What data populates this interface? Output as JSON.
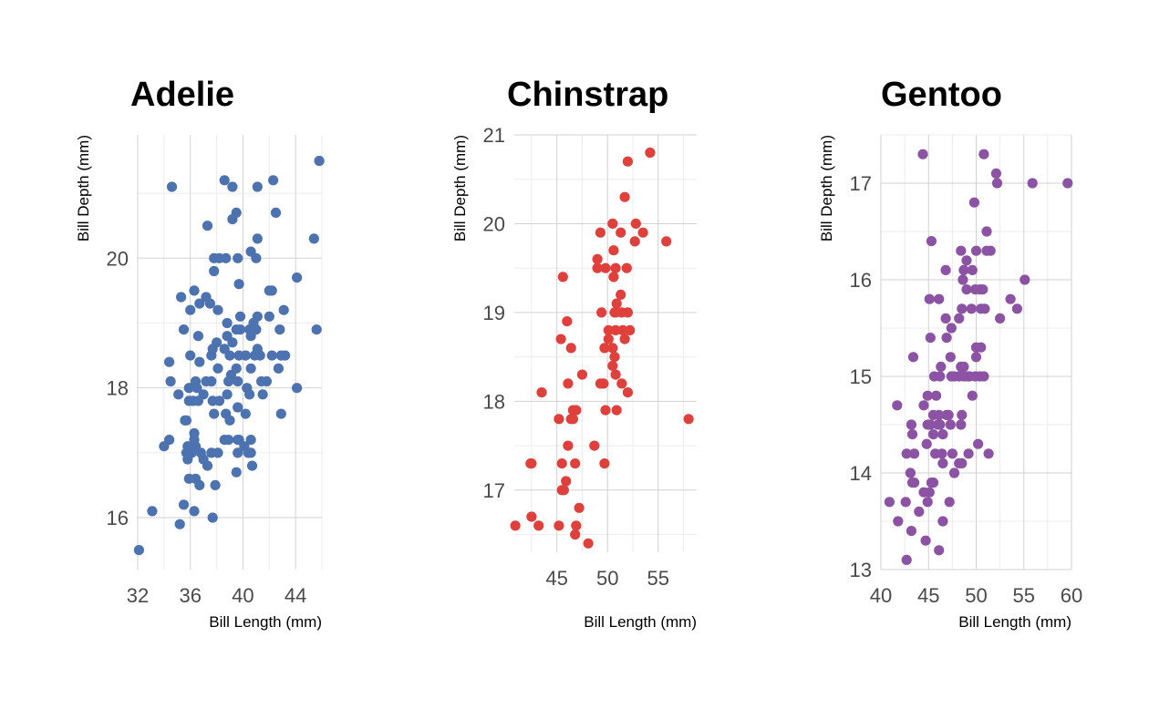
{
  "chart_data": [
    {
      "type": "scatter",
      "title": "Adelie",
      "xlabel": "Bill Length (mm)",
      "ylabel": "Bill Depth (mm)",
      "xlim": [
        32,
        46
      ],
      "ylim": [
        15.2,
        21.9
      ],
      "xticks": [
        32,
        36,
        40,
        44
      ],
      "yticks": [
        16,
        18,
        20
      ],
      "xminor": [
        34,
        38,
        42,
        46
      ],
      "yminor": [
        17,
        19,
        21
      ],
      "color": "#4c72b0",
      "grid": true,
      "points": [
        [
          34.6,
          21.1
        ],
        [
          38.6,
          21.2
        ],
        [
          39.2,
          21.1
        ],
        [
          41.1,
          21.1
        ],
        [
          42.3,
          21.2
        ],
        [
          45.8,
          21.5
        ],
        [
          39.2,
          20.6
        ],
        [
          39.5,
          20.7
        ],
        [
          42.5,
          20.7
        ],
        [
          37.3,
          20.5
        ],
        [
          40.6,
          20.1
        ],
        [
          41.1,
          20.3
        ],
        [
          45.4,
          20.3
        ],
        [
          37.8,
          20.0
        ],
        [
          38.2,
          20.0
        ],
        [
          38.7,
          20.0
        ],
        [
          41.0,
          20.0
        ],
        [
          39.6,
          20.0
        ],
        [
          37.8,
          19.8
        ],
        [
          39.7,
          19.6
        ],
        [
          44.1,
          19.7
        ],
        [
          35.3,
          19.4
        ],
        [
          36.3,
          19.5
        ],
        [
          37.2,
          19.4
        ],
        [
          37.5,
          19.3
        ],
        [
          42.0,
          19.5
        ],
        [
          42.2,
          19.5
        ],
        [
          36.7,
          19.3
        ],
        [
          38.1,
          19.2
        ],
        [
          36.0,
          19.2
        ],
        [
          38.8,
          19.0
        ],
        [
          39.8,
          19.1
        ],
        [
          41.1,
          19.1
        ],
        [
          42.0,
          19.1
        ],
        [
          43.1,
          19.2
        ],
        [
          45.6,
          18.9
        ],
        [
          40.8,
          19.0
        ],
        [
          41.0,
          18.9
        ],
        [
          40.5,
          18.9
        ],
        [
          39.8,
          18.9
        ],
        [
          39.5,
          18.9
        ],
        [
          35.5,
          18.9
        ],
        [
          42.8,
          18.9
        ],
        [
          38.8,
          18.8
        ],
        [
          39.2,
          18.7
        ],
        [
          36.6,
          18.8
        ],
        [
          38.0,
          18.7
        ],
        [
          37.7,
          18.6
        ],
        [
          40.6,
          18.8
        ],
        [
          41.1,
          18.6
        ],
        [
          38.6,
          18.6
        ],
        [
          39.0,
          18.5
        ],
        [
          39.7,
          18.5
        ],
        [
          40.2,
          18.5
        ],
        [
          40.9,
          18.5
        ],
        [
          41.3,
          18.5
        ],
        [
          42.2,
          18.5
        ],
        [
          42.9,
          18.5
        ],
        [
          43.2,
          18.5
        ],
        [
          36.0,
          18.5
        ],
        [
          37.6,
          18.5
        ],
        [
          39.1,
          18.2
        ],
        [
          39.5,
          18.3
        ],
        [
          40.6,
          18.3
        ],
        [
          36.7,
          18.4
        ],
        [
          34.4,
          18.4
        ],
        [
          42.7,
          18.3
        ],
        [
          36.4,
          18.1
        ],
        [
          37.2,
          18.1
        ],
        [
          37.6,
          18.1
        ],
        [
          38.9,
          18.1
        ],
        [
          39.6,
          18.1
        ],
        [
          41.4,
          18.1
        ],
        [
          41.8,
          18.1
        ],
        [
          38.1,
          18.3
        ],
        [
          34.5,
          18.1
        ],
        [
          35.1,
          17.9
        ],
        [
          35.9,
          18.0
        ],
        [
          36.2,
          17.8
        ],
        [
          35.9,
          17.8
        ],
        [
          36.5,
          18.0
        ],
        [
          36.6,
          17.8
        ],
        [
          37.0,
          17.9
        ],
        [
          37.7,
          17.8
        ],
        [
          38.2,
          17.8
        ],
        [
          38.8,
          17.9
        ],
        [
          39.6,
          17.7
        ],
        [
          40.3,
          18.0
        ],
        [
          40.5,
          17.9
        ],
        [
          41.5,
          17.9
        ],
        [
          44.1,
          18.0
        ],
        [
          39.0,
          17.5
        ],
        [
          37.8,
          17.6
        ],
        [
          38.7,
          17.6
        ],
        [
          40.2,
          17.6
        ],
        [
          42.9,
          17.6
        ],
        [
          35.7,
          17.5
        ],
        [
          35.6,
          17.5
        ],
        [
          39.6,
          17.2
        ],
        [
          36.3,
          17.3
        ],
        [
          36.3,
          17.2
        ],
        [
          38.6,
          17.2
        ],
        [
          38.9,
          17.2
        ],
        [
          39.7,
          17.2
        ],
        [
          40.6,
          17.2
        ],
        [
          34.4,
          17.2
        ],
        [
          34.0,
          17.1
        ],
        [
          35.8,
          17.1
        ],
        [
          36.2,
          17.1
        ],
        [
          36.4,
          17.1
        ],
        [
          40.1,
          17.1
        ],
        [
          36.0,
          17.0
        ],
        [
          37.6,
          17.0
        ],
        [
          36.8,
          17.0
        ],
        [
          38.1,
          17.0
        ],
        [
          39.6,
          17.0
        ],
        [
          40.4,
          17.0
        ],
        [
          40.6,
          17.0
        ],
        [
          35.7,
          17.0
        ],
        [
          36.1,
          17.0
        ],
        [
          35.8,
          16.9
        ],
        [
          37.0,
          16.9
        ],
        [
          37.3,
          16.8
        ],
        [
          40.7,
          16.8
        ],
        [
          39.5,
          16.7
        ],
        [
          35.9,
          16.6
        ],
        [
          36.4,
          16.6
        ],
        [
          36.7,
          16.5
        ],
        [
          37.9,
          16.5
        ],
        [
          35.5,
          16.2
        ],
        [
          36.3,
          16.1
        ],
        [
          33.1,
          16.1
        ],
        [
          37.7,
          16.0
        ],
        [
          35.2,
          15.9
        ],
        [
          32.1,
          15.5
        ]
      ]
    },
    {
      "type": "scatter",
      "title": "Chinstrap",
      "xlabel": "Bill Length (mm)",
      "ylabel": "Bill Depth (mm)",
      "xlim": [
        40.8,
        58.8
      ],
      "ylim": [
        16.3,
        21.0
      ],
      "xticks": [
        45,
        50,
        55
      ],
      "yticks": [
        17,
        18,
        19,
        20,
        21
      ],
      "xminor": [
        42.5,
        47.5,
        52.5,
        57.5
      ],
      "yminor": [
        16.5,
        17.5,
        18.5,
        19.5,
        20.5
      ],
      "color": "#e0403c",
      "grid": true,
      "points": [
        [
          54.2,
          20.8
        ],
        [
          52.0,
          20.7
        ],
        [
          51.7,
          20.3
        ],
        [
          50.5,
          20.0
        ],
        [
          52.8,
          20.0
        ],
        [
          49.3,
          19.9
        ],
        [
          51.3,
          19.9
        ],
        [
          53.5,
          19.9
        ],
        [
          52.7,
          19.8
        ],
        [
          55.8,
          19.8
        ],
        [
          50.6,
          19.7
        ],
        [
          49.0,
          19.6
        ],
        [
          50.8,
          19.5
        ],
        [
          49.0,
          19.5
        ],
        [
          49.8,
          19.5
        ],
        [
          51.9,
          19.5
        ],
        [
          45.6,
          19.4
        ],
        [
          50.6,
          19.4
        ],
        [
          51.3,
          19.2
        ],
        [
          50.9,
          19.1
        ],
        [
          50.7,
          19.0
        ],
        [
          50.8,
          19.0
        ],
        [
          51.4,
          19.0
        ],
        [
          52.0,
          19.0
        ],
        [
          49.4,
          19.0
        ],
        [
          46.0,
          18.9
        ],
        [
          51.5,
          18.8
        ],
        [
          52.2,
          18.8
        ],
        [
          50.1,
          18.7
        ],
        [
          51.7,
          18.7
        ],
        [
          45.4,
          18.7
        ],
        [
          46.4,
          18.6
        ],
        [
          50.5,
          18.6
        ],
        [
          50.1,
          18.8
        ],
        [
          50.7,
          18.5
        ],
        [
          50.8,
          18.8
        ],
        [
          49.7,
          18.6
        ],
        [
          50.5,
          18.4
        ],
        [
          47.5,
          18.3
        ],
        [
          51.4,
          18.2
        ],
        [
          49.3,
          18.2
        ],
        [
          49.6,
          18.2
        ],
        [
          46.1,
          18.2
        ],
        [
          50.8,
          18.3
        ],
        [
          52.0,
          18.1
        ],
        [
          43.5,
          18.1
        ],
        [
          46.6,
          17.9
        ],
        [
          46.9,
          17.9
        ],
        [
          49.8,
          17.9
        ],
        [
          50.9,
          17.9
        ],
        [
          45.2,
          17.8
        ],
        [
          46.4,
          17.8
        ],
        [
          46.6,
          17.8
        ],
        [
          58.0,
          17.8
        ],
        [
          46.1,
          17.5
        ],
        [
          48.7,
          17.5
        ],
        [
          42.4,
          17.3
        ],
        [
          42.5,
          17.3
        ],
        [
          45.5,
          17.3
        ],
        [
          46.8,
          17.3
        ],
        [
          49.7,
          17.3
        ],
        [
          45.9,
          17.1
        ],
        [
          45.5,
          17.0
        ],
        [
          45.7,
          17.0
        ],
        [
          47.2,
          16.8
        ],
        [
          42.5,
          16.7
        ],
        [
          40.9,
          16.6
        ],
        [
          43.2,
          16.6
        ],
        [
          45.2,
          16.6
        ],
        [
          46.9,
          16.6
        ],
        [
          46.8,
          16.5
        ],
        [
          48.1,
          16.4
        ]
      ]
    },
    {
      "type": "scatter",
      "title": "Gentoo",
      "xlabel": "Bill Length (mm)",
      "ylabel": "Bill Depth (mm)",
      "xlim": [
        40,
        60
      ],
      "ylim": [
        13.0,
        17.5
      ],
      "xticks": [
        40,
        45,
        50,
        55,
        60
      ],
      "yticks": [
        13,
        14,
        15,
        16,
        17
      ],
      "xminor": [
        42.5,
        47.5,
        52.5,
        57.5
      ],
      "yminor": [
        13.5,
        14.5,
        15.5,
        16.5,
        17.5
      ],
      "color": "#8c52a3",
      "grid": true,
      "points": [
        [
          44.4,
          17.3
        ],
        [
          50.8,
          17.3
        ],
        [
          52.1,
          17.1
        ],
        [
          52.2,
          17.0
        ],
        [
          55.9,
          17.0
        ],
        [
          59.6,
          17.0
        ],
        [
          49.8,
          16.8
        ],
        [
          51.1,
          16.5
        ],
        [
          45.3,
          16.4
        ],
        [
          48.4,
          16.3
        ],
        [
          50.0,
          16.3
        ],
        [
          51.1,
          16.3
        ],
        [
          51.5,
          16.3
        ],
        [
          49.0,
          16.2
        ],
        [
          48.7,
          16.1
        ],
        [
          49.6,
          16.1
        ],
        [
          46.8,
          16.1
        ],
        [
          55.1,
          16.0
        ],
        [
          48.6,
          16.0
        ],
        [
          49.0,
          15.9
        ],
        [
          49.9,
          15.9
        ],
        [
          50.4,
          15.9
        ],
        [
          50.7,
          15.9
        ],
        [
          45.1,
          15.8
        ],
        [
          46.1,
          15.8
        ],
        [
          48.5,
          15.7
        ],
        [
          49.5,
          15.7
        ],
        [
          50.5,
          15.7
        ],
        [
          50.9,
          15.7
        ],
        [
          53.6,
          15.8
        ],
        [
          54.3,
          15.7
        ],
        [
          52.5,
          15.6
        ],
        [
          46.8,
          15.6
        ],
        [
          48.2,
          15.6
        ],
        [
          47.4,
          15.5
        ],
        [
          45.2,
          15.4
        ],
        [
          46.9,
          15.4
        ],
        [
          47.3,
          15.2
        ],
        [
          43.4,
          15.2
        ],
        [
          50.0,
          15.3
        ],
        [
          50.5,
          15.3
        ],
        [
          50.0,
          15.2
        ],
        [
          45.6,
          15.0
        ],
        [
          46.2,
          15.0
        ],
        [
          47.4,
          15.0
        ],
        [
          48.2,
          15.0
        ],
        [
          48.7,
          15.0
        ],
        [
          49.3,
          15.0
        ],
        [
          49.9,
          15.0
        ],
        [
          50.4,
          15.0
        ],
        [
          50.8,
          15.0
        ],
        [
          49.1,
          15.0
        ],
        [
          47.7,
          15.0
        ],
        [
          48.4,
          15.1
        ],
        [
          48.7,
          15.1
        ],
        [
          46.3,
          15.1
        ],
        [
          44.9,
          14.8
        ],
        [
          45.8,
          14.8
        ],
        [
          49.6,
          14.8
        ],
        [
          44.5,
          14.7
        ],
        [
          41.7,
          14.7
        ],
        [
          46.1,
          14.6
        ],
        [
          46.9,
          14.6
        ],
        [
          47.1,
          14.6
        ],
        [
          45.5,
          14.6
        ],
        [
          48.5,
          14.6
        ],
        [
          46.2,
          14.5
        ],
        [
          44.9,
          14.5
        ],
        [
          45.2,
          14.5
        ],
        [
          47.3,
          14.5
        ],
        [
          46.0,
          14.5
        ],
        [
          48.4,
          14.5
        ],
        [
          43.2,
          14.5
        ],
        [
          43.3,
          14.4
        ],
        [
          45.5,
          14.4
        ],
        [
          46.5,
          14.4
        ],
        [
          44.8,
          14.3
        ],
        [
          50.2,
          14.3
        ],
        [
          45.7,
          14.2
        ],
        [
          46.4,
          14.2
        ],
        [
          47.5,
          14.2
        ],
        [
          42.7,
          14.2
        ],
        [
          43.5,
          14.2
        ],
        [
          49.2,
          14.2
        ],
        [
          51.3,
          14.2
        ],
        [
          48.5,
          14.1
        ],
        [
          46.5,
          14.1
        ],
        [
          48.2,
          14.1
        ],
        [
          47.7,
          14.0
        ],
        [
          43.1,
          14.0
        ],
        [
          43.5,
          13.9
        ],
        [
          43.3,
          13.9
        ],
        [
          45.3,
          13.9
        ],
        [
          45.5,
          13.9
        ],
        [
          44.5,
          13.8
        ],
        [
          45.1,
          13.8
        ],
        [
          46.5,
          13.5
        ],
        [
          42.6,
          13.7
        ],
        [
          40.9,
          13.7
        ],
        [
          44.9,
          13.7
        ],
        [
          47.2,
          13.7
        ],
        [
          41.8,
          13.5
        ],
        [
          44.0,
          13.6
        ],
        [
          43.2,
          13.4
        ],
        [
          44.7,
          13.3
        ],
        [
          46.1,
          13.2
        ],
        [
          42.7,
          13.1
        ]
      ]
    }
  ]
}
